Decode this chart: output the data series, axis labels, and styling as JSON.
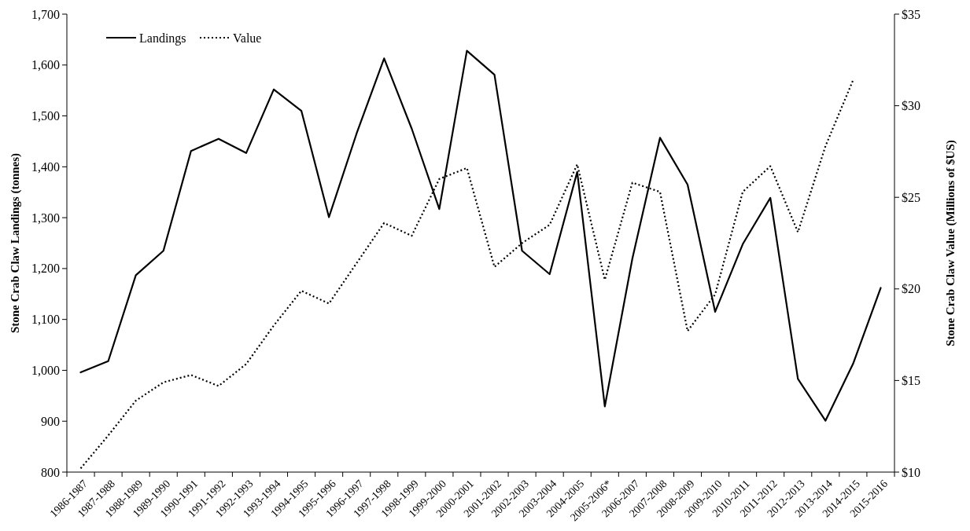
{
  "chart_data": {
    "type": "line",
    "ylabel": "Stone Crab Claw Landings (tonnes)",
    "y2label": "Stone Crab Claw Value (Millions of $US)",
    "categories": [
      "1986-1987",
      "1987-1988",
      "1988-1989",
      "1989-1990",
      "1990-1991",
      "1991-1992",
      "1992-1993",
      "1993-1994",
      "1994-1995",
      "1995-1996",
      "1996-1997",
      "1997-1998",
      "1998-1999",
      "1999-2000",
      "2000-2001",
      "2001-2002",
      "2002-2003",
      "2003-2004",
      "2004-2005",
      "2005-2006*",
      "2006-2007",
      "2007-2008",
      "2008-2009",
      "2009-2010",
      "2010-2011",
      "2011-2012",
      "2012-2013",
      "2013-2014",
      "2014-2015",
      "2015-2016"
    ],
    "series": [
      {
        "name": "Landings",
        "color": "#000000",
        "line_style": "solid",
        "values": [
          996,
          1018,
          1187,
          1235,
          1431,
          1455,
          1427,
          1552,
          1510,
          1301,
          1465,
          1613,
          1475,
          1317,
          1628,
          1581,
          1235,
          1189,
          1390,
          929,
          1220,
          1457,
          1365,
          1115,
          1248,
          1339,
          983,
          901,
          1013,
          1162
        ]
      },
      {
        "name": "Value",
        "color": "#000000",
        "line_style": "dotted",
        "axis": "y2",
        "values": [
          10.2,
          12.0,
          13.9,
          14.9,
          15.3,
          14.7,
          15.9,
          18.0,
          19.9,
          19.2,
          21.4,
          23.6,
          22.9,
          26.0,
          26.6,
          21.2,
          22.5,
          23.5,
          26.8,
          20.5,
          25.8,
          25.3,
          17.7,
          19.7,
          25.3,
          26.7,
          23.1,
          27.8,
          31.4,
          null
        ]
      }
    ],
    "ylim": [
      800,
      1700
    ],
    "yticks": [
      {
        "value": 800,
        "label": "800"
      },
      {
        "value": 900,
        "label": "900"
      },
      {
        "value": 1000,
        "label": "1,000"
      },
      {
        "value": 1100,
        "label": "1,100"
      },
      {
        "value": 1200,
        "label": "1,200"
      },
      {
        "value": 1300,
        "label": "1,300"
      },
      {
        "value": 1400,
        "label": "1,400"
      },
      {
        "value": 1500,
        "label": "1,500"
      },
      {
        "value": 1600,
        "label": "1,600"
      },
      {
        "value": 1700,
        "label": "1,700"
      }
    ],
    "y2lim": [
      10,
      35
    ],
    "y2ticks": [
      {
        "value": 10,
        "label": "$10"
      },
      {
        "value": 15,
        "label": "$15"
      },
      {
        "value": 20,
        "label": "$20"
      },
      {
        "value": 25,
        "label": "$25"
      },
      {
        "value": 30,
        "label": "$30"
      },
      {
        "value": 35,
        "label": "$35"
      }
    ],
    "legend": "top left",
    "grid": false,
    "marker": "none"
  }
}
